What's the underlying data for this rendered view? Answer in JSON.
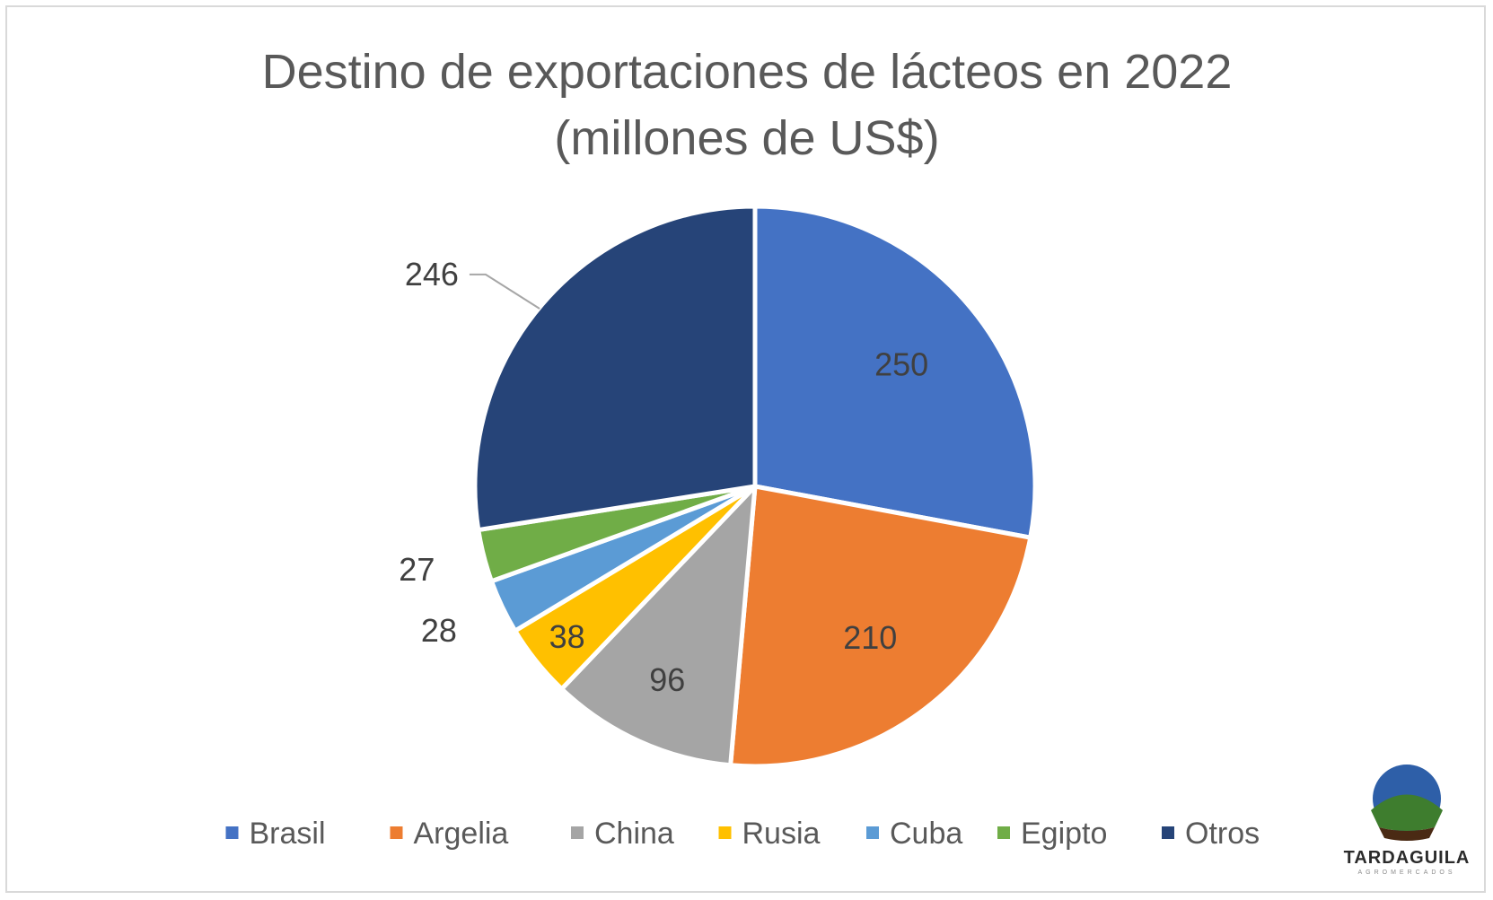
{
  "chart_data": {
    "type": "pie",
    "title": "Destino de exportaciones de lácteos en 2022",
    "subtitle": "(millones de US$)",
    "categories": [
      "Brasil",
      "Argelia",
      "China",
      "Rusia",
      "Cuba",
      "Egipto",
      "Otros"
    ],
    "values": [
      250,
      210,
      96,
      38,
      28,
      27,
      246
    ],
    "colors": [
      "#4472C4",
      "#ED7D31",
      "#A5A5A5",
      "#FFC000",
      "#5B9BD5",
      "#70AD47",
      "#264478"
    ],
    "legend_position": "bottom",
    "start_angle": "12 o'clock, clockwise"
  },
  "logo": {
    "name": "TARDAGUILA",
    "tagline": "AGROMERCADOS",
    "colors": [
      "#2E5FA8",
      "#3E7D2E",
      "#4A2A14"
    ]
  }
}
